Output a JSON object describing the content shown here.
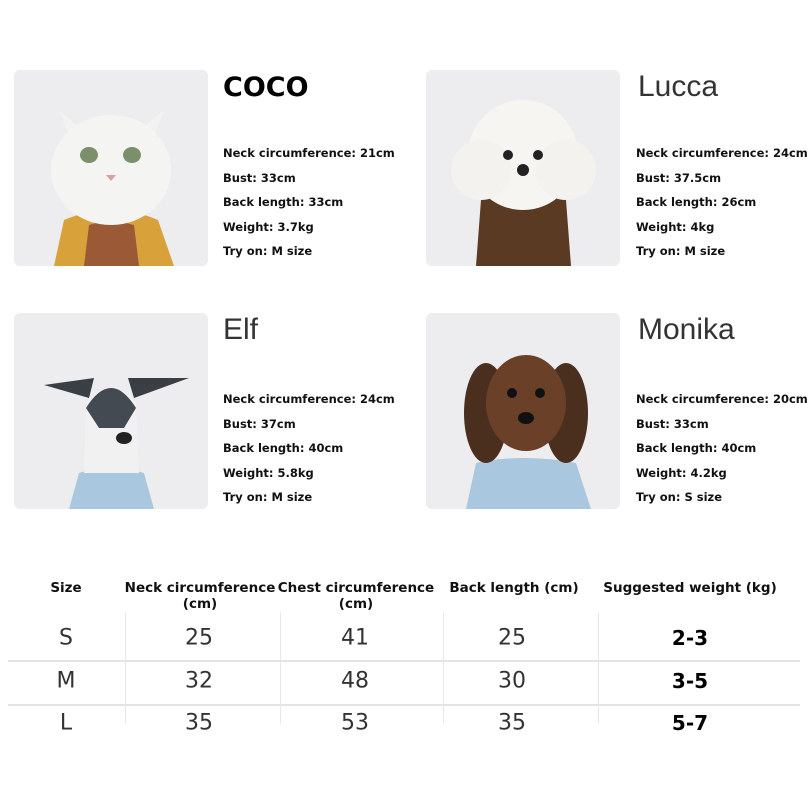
{
  "pets": [
    {
      "name": "COCO",
      "stats": [
        "Neck circumference: 21cm",
        "Bust: 33cm",
        "Back length: 33cm",
        "Weight: 3.7kg",
        "Try on: M size"
      ]
    },
    {
      "name": "Lucca",
      "stats": [
        "Neck circumference: 24cm",
        "Bust: 37.5cm",
        "Back length: 26cm",
        "Weight: 4kg",
        "Try on: M size"
      ]
    },
    {
      "name": "Elf",
      "stats": [
        "Neck circumference: 24cm",
        "Bust: 37cm",
        "Back length: 40cm",
        "Weight: 5.8kg",
        "Try on: M size"
      ]
    },
    {
      "name": "Monika",
      "stats": [
        "Neck circumference: 20cm",
        "Bust: 33cm",
        "Back length: 40cm",
        "Weight: 4.2kg",
        "Try on: S size"
      ]
    }
  ],
  "size_table": {
    "headers": [
      "Size",
      "Neck circumference\n(cm)",
      "Chest circumference\n(cm)",
      "Back length (cm)",
      "Suggested weight (kg)"
    ],
    "rows": [
      [
        "S",
        "25",
        "41",
        "25",
        "2-3"
      ],
      [
        "M",
        "32",
        "48",
        "30",
        "3-5"
      ],
      [
        "L",
        "35",
        "53",
        "35",
        "5-7"
      ]
    ]
  }
}
